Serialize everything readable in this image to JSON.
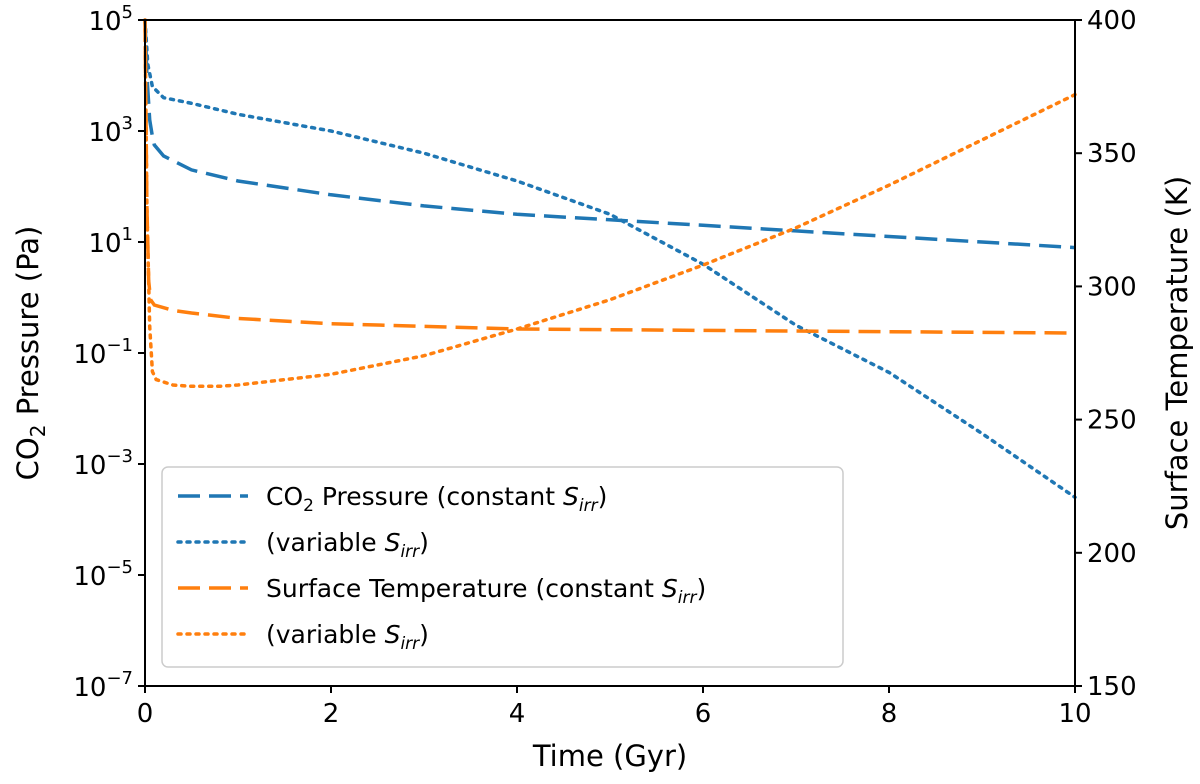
{
  "chart_data": {
    "type": "line",
    "title": "",
    "xlabel": "Time (Gyr)",
    "ylabel_left": {
      "prefix": "CO",
      "sub": "2",
      "suffix": " Pressure (Pa)"
    },
    "ylabel_right": "Surface Temperature (K)",
    "xlim": [
      0,
      10
    ],
    "xticks": [
      "0",
      "2",
      "4",
      "6",
      "8",
      "10"
    ],
    "ylim_left_log10": [
      -7,
      5
    ],
    "yticks_left": [
      {
        "base": "10",
        "exp": "5"
      },
      {
        "base": "10",
        "exp": "3"
      },
      {
        "base": "10",
        "exp": "1"
      },
      {
        "base": "10",
        "exp": "−1"
      },
      {
        "base": "10",
        "exp": "−3"
      },
      {
        "base": "10",
        "exp": "−5"
      },
      {
        "base": "10",
        "exp": "−7"
      }
    ],
    "ylim_right": [
      150,
      400
    ],
    "yticks_right": [
      "400",
      "350",
      "300",
      "250",
      "200",
      "150"
    ],
    "legend_position": "lower-left",
    "series": [
      {
        "name": "CO2 Pressure (constant Sirr)",
        "axis": "left",
        "style": "dashed",
        "color": "#1f77b4",
        "x": [
          0.0,
          0.02,
          0.05,
          0.08,
          0.1,
          0.2,
          0.5,
          1,
          2,
          3,
          4,
          5,
          6,
          7,
          8,
          9,
          10
        ],
        "log10_y": [
          5.0,
          4.0,
          3.2,
          2.9,
          2.75,
          2.55,
          2.3,
          2.1,
          1.85,
          1.65,
          1.5,
          1.4,
          1.3,
          1.2,
          1.1,
          1.0,
          0.9
        ]
      },
      {
        "name": "(variable Sirr) CO2 Pressure",
        "axis": "left",
        "style": "dotted",
        "color": "#1f77b4",
        "x": [
          0.0,
          0.03,
          0.08,
          0.2,
          0.5,
          1,
          2,
          3,
          4,
          4.5,
          5,
          6,
          7,
          8,
          9,
          10
        ],
        "log10_y": [
          5.0,
          4.2,
          3.8,
          3.6,
          3.5,
          3.3,
          3.0,
          2.6,
          2.1,
          1.8,
          1.5,
          0.6,
          -0.5,
          -1.35,
          -2.45,
          -3.6
        ]
      },
      {
        "name": "Surface Temperature (constant Sirr)",
        "axis": "right",
        "style": "dashed",
        "color": "#ff7f0e",
        "x": [
          0.0,
          0.02,
          0.04,
          0.06,
          0.1,
          0.3,
          0.5,
          1,
          2,
          4,
          6,
          8,
          10
        ],
        "y": [
          400,
          330,
          302,
          295,
          293,
          291,
          290,
          288,
          286,
          284,
          283.5,
          283,
          282.5
        ]
      },
      {
        "name": "(variable Sirr) Surface Temperature",
        "axis": "right",
        "style": "dotted",
        "color": "#ff7f0e",
        "x": [
          0.0,
          0.02,
          0.05,
          0.08,
          0.12,
          0.3,
          0.5,
          0.8,
          1,
          2,
          3,
          4,
          5,
          6,
          7,
          8,
          9,
          10
        ],
        "y": [
          400,
          330,
          285,
          268,
          265,
          263,
          262.5,
          262.5,
          263,
          267,
          274,
          284,
          295,
          308,
          322,
          338,
          355,
          372
        ]
      }
    ],
    "legend": [
      {
        "style": "dashed",
        "color": "#1f77b4",
        "pre": "CO",
        "sub": "2",
        "mid": " Pressure (constant ",
        "var": "S",
        "varsub": "irr",
        "post": ")"
      },
      {
        "style": "dotted",
        "color": "#1f77b4",
        "pre": "(variable ",
        "sub": "",
        "mid": "",
        "var": "S",
        "varsub": "irr",
        "post": ")"
      },
      {
        "style": "dashed",
        "color": "#ff7f0e",
        "pre": "Surface Temperature (constant ",
        "sub": "",
        "mid": "",
        "var": "S",
        "varsub": "irr",
        "post": ")"
      },
      {
        "style": "dotted",
        "color": "#ff7f0e",
        "pre": "(variable ",
        "sub": "",
        "mid": "",
        "var": "S",
        "varsub": "irr",
        "post": ")"
      }
    ]
  }
}
